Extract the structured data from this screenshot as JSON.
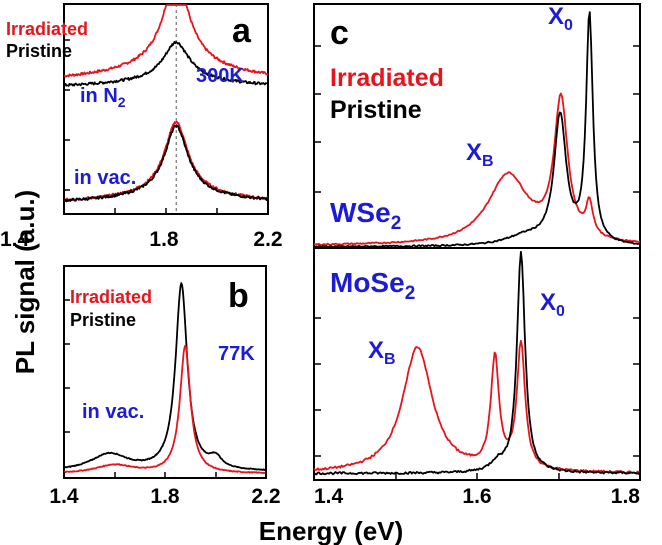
{
  "figure": {
    "ylabel": "PL signal (a.u.)",
    "xlabel": "Energy (eV)"
  },
  "colors": {
    "irradiated": "#e8141c",
    "pristine": "#000000",
    "annotation": "#1c1cd6"
  },
  "panels": {
    "a": {
      "letter": "a",
      "legend_irradiated": "Irradiated",
      "legend_pristine": "Pristine",
      "temperature": "300K",
      "label_n2": "in N",
      "label_n2_sub": "2",
      "label_vac": "in vac."
    },
    "b": {
      "letter": "b",
      "legend_irradiated": "Irradiated",
      "legend_pristine": "Pristine",
      "temperature": "77K",
      "label_vac": "in vac."
    },
    "c": {
      "letter": "c",
      "legend_irradiated": "Irradiated",
      "legend_pristine": "Pristine",
      "wse2_label": "WSe",
      "wse2_sub": "2",
      "mose2_label": "MoSe",
      "mose2_sub": "2",
      "wse2_x0": "X",
      "wse2_x0_sub": "0",
      "wse2_xb": "X",
      "wse2_xb_sub": "B",
      "mose2_x0": "X",
      "mose2_x0_sub": "0",
      "mose2_xb": "X",
      "mose2_xb_sub": "B"
    }
  },
  "chart_data": [
    {
      "id": "a",
      "type": "line",
      "xlim": [
        1.4,
        2.2
      ],
      "ylim": [
        0,
        1
      ],
      "xticks": [
        "1.4",
        "1.8",
        "2.2"
      ],
      "xtick_values": [
        1.4,
        1.8,
        2.2
      ],
      "reference_line_x": 1.84,
      "series": [
        {
          "name": "Irradiated",
          "label": "in N2",
          "offset": 0.55,
          "baseline": 0.08,
          "peaks": [
            {
              "c": 1.84,
              "a": 0.38,
              "w": 0.06
            }
          ],
          "tail": 0.12,
          "color": "#e8141c"
        },
        {
          "name": "Pristine",
          "label": "in N2",
          "offset": 0.55,
          "baseline": 0.05,
          "peaks": [
            {
              "c": 1.84,
              "a": 0.16,
              "w": 0.06
            }
          ],
          "tail": 0.06,
          "color": "#000000"
        },
        {
          "name": "Irradiated",
          "label": "in vac.",
          "offset": 0.0,
          "baseline": 0.05,
          "peaks": [
            {
              "c": 1.84,
              "a": 0.32,
              "w": 0.055
            }
          ],
          "tail": 0.07,
          "color": "#e8141c"
        },
        {
          "name": "Pristine",
          "label": "in vac.",
          "offset": 0.0,
          "baseline": 0.05,
          "peaks": [
            {
              "c": 1.84,
              "a": 0.31,
              "w": 0.055
            }
          ],
          "tail": 0.06,
          "color": "#000000"
        }
      ]
    },
    {
      "id": "b",
      "type": "line",
      "xlim": [
        1.4,
        2.2
      ],
      "ylim": [
        0,
        1
      ],
      "xticks": [
        "1.4",
        "1.8",
        "2.2"
      ],
      "xtick_values": [
        1.4,
        1.8,
        2.2
      ],
      "series": [
        {
          "name": "Pristine",
          "baseline": 0.03,
          "peaks": [
            {
              "c": 1.865,
              "a": 0.88,
              "w": 0.028
            },
            {
              "c": 1.58,
              "a": 0.08,
              "w": 0.09
            },
            {
              "c": 2.0,
              "a": 0.05,
              "w": 0.03
            }
          ],
          "color": "#000000"
        },
        {
          "name": "Irradiated",
          "baseline": 0.02,
          "peaks": [
            {
              "c": 1.88,
              "a": 0.6,
              "w": 0.025
            },
            {
              "c": 1.6,
              "a": 0.04,
              "w": 0.09
            }
          ],
          "color": "#e8141c"
        }
      ]
    },
    {
      "id": "c-WSe2",
      "type": "line",
      "xlim": [
        1.4,
        1.8
      ],
      "ylim": [
        0,
        1.05
      ],
      "series": [
        {
          "name": "Irradiated",
          "baseline": 0.01,
          "peaks": [
            {
              "c": 1.638,
              "a": 0.3,
              "w": 0.03
            },
            {
              "c": 1.703,
              "a": 0.6,
              "w": 0.01
            },
            {
              "c": 1.738,
              "a": 0.14,
              "w": 0.005
            }
          ],
          "color": "#e8141c"
        },
        {
          "name": "Pristine",
          "baseline": 0.005,
          "peaks": [
            {
              "c": 1.702,
              "a": 0.55,
              "w": 0.009
            },
            {
              "c": 1.738,
              "a": 0.98,
              "w": 0.005
            },
            {
              "c": 1.66,
              "a": 0.04,
              "w": 0.03
            }
          ],
          "color": "#000000"
        }
      ]
    },
    {
      "id": "c-MoSe2",
      "type": "line",
      "xlim": [
        1.4,
        1.8
      ],
      "ylim": [
        0,
        1.05
      ],
      "xticks": [
        "1.4",
        "1.6",
        "1.8"
      ],
      "xtick_values": [
        1.4,
        1.6,
        1.8
      ],
      "series": [
        {
          "name": "Irradiated",
          "baseline": 0.03,
          "peaks": [
            {
              "c": 1.527,
              "a": 0.57,
              "w": 0.022
            },
            {
              "c": 1.622,
              "a": 0.5,
              "w": 0.006
            },
            {
              "c": 1.654,
              "a": 0.57,
              "w": 0.006
            }
          ],
          "color": "#e8141c"
        },
        {
          "name": "Pristine",
          "baseline": 0.03,
          "peaks": [
            {
              "c": 1.654,
              "a": 1.0,
              "w": 0.006
            },
            {
              "c": 1.625,
              "a": 0.04,
              "w": 0.01
            }
          ],
          "color": "#000000"
        }
      ]
    }
  ]
}
